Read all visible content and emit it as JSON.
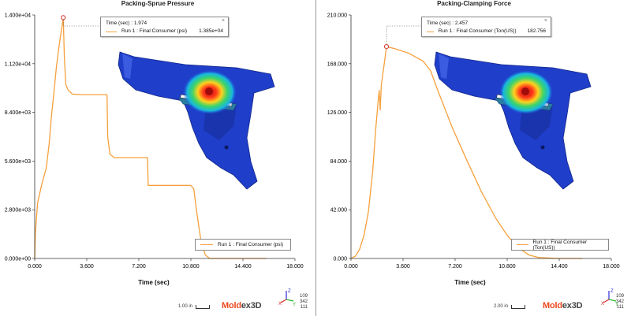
{
  "colors": {
    "series": "#f5a03c",
    "marker": "#d9362b",
    "logo_primary": "#e8491d",
    "logo_secondary": "#444444"
  },
  "panels": [
    {
      "title": "Packing-Sprue Pressure",
      "tooltip": {
        "time_label": "Time (sec) : 1.974",
        "series_label": "Run 1 : Final Consumer (psi)",
        "value": "1.385e+04"
      },
      "legend_label": "Run 1 : Final Consumer (psi)",
      "scale_label": "1.00 in",
      "logo": {
        "part1": "Mold",
        "part2": "ex3D"
      },
      "coords": [
        "109",
        "342",
        "111"
      ],
      "triad": {
        "z": "Z",
        "x": "X",
        "y": "Y"
      }
    },
    {
      "title": "Packing-Clamping Force",
      "tooltip": {
        "time_label": "Time (sec) : 2.457",
        "series_label": "Run 1 : Final Consumer (Ton(US))",
        "value": "182.756"
      },
      "legend_label": "Run 1 : Final Consumer (Ton(US))",
      "scale_label": "2.00 in",
      "logo": {
        "part1": "Mold",
        "part2": "ex3D"
      },
      "coords": [
        "109",
        "342",
        "111"
      ],
      "triad": {
        "z": "Z",
        "x": "X",
        "y": "Y"
      }
    }
  ],
  "chart_data": [
    {
      "type": "line",
      "title": "Packing-Sprue Pressure",
      "xlabel": "Time (sec)",
      "ylabel": "",
      "xlim": [
        0,
        18
      ],
      "ylim": [
        0,
        14000
      ],
      "x_ticks": [
        "0.000",
        "3.600",
        "7.200",
        "10.800",
        "14.400",
        "18.000"
      ],
      "y_ticks": [
        "0.000e+00",
        "2.800e+03",
        "5.600e+03",
        "8.400e+03",
        "1.120e+04",
        "1.400e+04"
      ],
      "legend_position": "bottom-right",
      "highlight": {
        "x": 1.974,
        "y": 13850
      },
      "series": [
        {
          "name": "Run 1 : Final Consumer (psi)",
          "points": [
            [
              0,
              0
            ],
            [
              0.05,
              1500
            ],
            [
              0.2,
              3200
            ],
            [
              0.5,
              4300
            ],
            [
              0.8,
              5200
            ],
            [
              1.0,
              6600
            ],
            [
              1.15,
              8100
            ],
            [
              1.3,
              9300
            ],
            [
              1.5,
              11000
            ],
            [
              1.7,
              12300
            ],
            [
              1.974,
              13850
            ],
            [
              2.05,
              11600
            ],
            [
              2.15,
              10000
            ],
            [
              2.3,
              9700
            ],
            [
              2.6,
              9450
            ],
            [
              3.2,
              9420
            ],
            [
              4.4,
              9420
            ],
            [
              5.0,
              9420
            ],
            [
              5.05,
              7000
            ],
            [
              5.2,
              6000
            ],
            [
              5.5,
              5800
            ],
            [
              7.8,
              5800
            ],
            [
              7.85,
              4200
            ],
            [
              10.8,
              4200
            ],
            [
              11.0,
              4000
            ],
            [
              11.2,
              2700
            ],
            [
              11.5,
              1000
            ],
            [
              11.8,
              200
            ],
            [
              12.1,
              0
            ],
            [
              16.0,
              0
            ]
          ]
        }
      ]
    },
    {
      "type": "line",
      "title": "Packing-Clamping Force",
      "xlabel": "Time (sec)",
      "ylabel": "",
      "xlim": [
        0,
        18
      ],
      "ylim": [
        0,
        210
      ],
      "x_ticks": [
        "0.000",
        "3.600",
        "7.200",
        "10.800",
        "14.400",
        "18.000"
      ],
      "y_ticks": [
        "0.000",
        "42.000",
        "84.000",
        "126.000",
        "168.000",
        "210.000"
      ],
      "legend_position": "bottom-right",
      "highlight": {
        "x": 2.457,
        "y": 182.756
      },
      "series": [
        {
          "name": "Run 1 : Final Consumer (Ton(US))",
          "points": [
            [
              0,
              0
            ],
            [
              0.3,
              2
            ],
            [
              0.6,
              8
            ],
            [
              0.9,
              20
            ],
            [
              1.2,
              40
            ],
            [
              1.5,
              75
            ],
            [
              1.7,
              110
            ],
            [
              1.85,
              132
            ],
            [
              1.95,
              145
            ],
            [
              2.02,
              128
            ],
            [
              2.1,
              150
            ],
            [
              2.3,
              168
            ],
            [
              2.457,
              182.756
            ],
            [
              3.0,
              181
            ],
            [
              4.0,
              177
            ],
            [
              5.0,
              170
            ],
            [
              5.5,
              162
            ],
            [
              6.0,
              145
            ],
            [
              7.0,
              113
            ],
            [
              8.0,
              85
            ],
            [
              9.0,
              58
            ],
            [
              10.0,
              35
            ],
            [
              10.8,
              20
            ],
            [
              11.5,
              10
            ],
            [
              12.3,
              3
            ],
            [
              13.0,
              0.8
            ],
            [
              14.4,
              0
            ],
            [
              16.0,
              0
            ]
          ]
        }
      ]
    }
  ]
}
